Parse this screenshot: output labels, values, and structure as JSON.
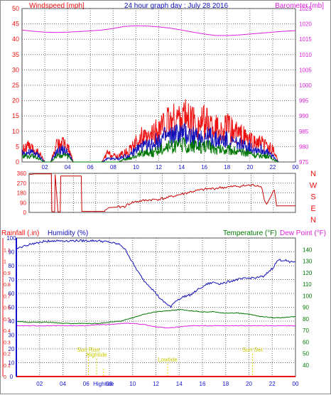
{
  "colors": {
    "red": "#ee1111",
    "blue": "#1111bb",
    "green": "#007700",
    "magenta": "#dd22dd",
    "darkred": "#cc0000",
    "yellow": "#dddd00",
    "grid": "#6a6a6a",
    "axisBlue": "#1111cc"
  },
  "header": {
    "left": "Windspeed [mph]",
    "center": "24 hour graph day : July 28 2016",
    "right": "Barometer [mb]"
  },
  "bottom_header": {
    "rain": "Rainfall (.in)",
    "hum": "Humidity (%)",
    "temp": "Temperature (°F)",
    "dew": "Dew Point (°F)"
  },
  "compass": [
    "N",
    "W",
    "S",
    "E",
    "N"
  ],
  "x_ticks": [
    "02",
    "04",
    "06",
    "08",
    "10",
    "12",
    "14",
    "16",
    "18",
    "20",
    "22",
    "00"
  ],
  "chart_data": [
    {
      "type": "line",
      "name": "wind-and-barometer",
      "title": "24 hour graph day : July 28 2016",
      "x_range": [
        0,
        24
      ],
      "y_left": {
        "label": "Windspeed [mph]",
        "range": [
          0,
          50
        ],
        "ticks": [
          0,
          5,
          10,
          15,
          20,
          25,
          30,
          35,
          40,
          45,
          50
        ]
      },
      "y_right": {
        "label": "Barometer [mb]",
        "range": [
          975,
          1025
        ],
        "ticks": [
          975,
          980,
          985,
          990,
          995,
          1000,
          1005,
          1010,
          1015,
          1020,
          1025
        ]
      },
      "series": [
        {
          "name": "Barometer [mb]",
          "axis": "right",
          "color": "#dd22dd",
          "x": [
            0,
            1,
            2,
            3,
            4,
            5,
            6,
            7,
            8,
            9,
            10,
            11,
            12,
            13,
            14,
            15,
            16,
            17,
            18,
            19,
            20,
            21,
            22,
            23,
            24
          ],
          "y": [
            1018.0,
            1017.6,
            1017.3,
            1017.2,
            1017.3,
            1017.5,
            1017.7,
            1018.0,
            1018.5,
            1019.2,
            1019.4,
            1019.3,
            1019.0,
            1018.6,
            1018.0,
            1017.3,
            1016.7,
            1016.2,
            1016.2,
            1016.4,
            1016.7,
            1017.0,
            1017.3,
            1017.6,
            1017.8
          ]
        },
        {
          "name": "wind gust",
          "axis": "left",
          "color": "#ee1111",
          "x": [
            0,
            0.5,
            1,
            1.5,
            2,
            2.5,
            3,
            3.5,
            4,
            4.5,
            5,
            5.5,
            6,
            6.5,
            7,
            7.5,
            8,
            8.5,
            9,
            9.5,
            10,
            10.5,
            11,
            11.5,
            12,
            12.5,
            13,
            13.5,
            14,
            14.5,
            15,
            15.5,
            16,
            16.5,
            17,
            17.5,
            18,
            18.5,
            19,
            19.5,
            20,
            20.5,
            21,
            21.5,
            22,
            22.5
          ],
          "y": [
            4,
            5,
            4,
            3,
            0,
            0,
            5,
            6,
            5,
            0,
            0,
            0,
            0,
            0,
            0,
            3,
            2,
            2,
            3,
            4,
            6,
            8,
            7,
            9,
            11,
            12,
            13,
            14,
            15,
            14,
            13,
            12,
            13,
            12,
            11,
            10,
            11,
            10,
            9,
            8,
            7,
            6,
            6,
            5,
            4,
            0
          ]
        },
        {
          "name": "wind speed",
          "axis": "left",
          "color": "#1111bb",
          "x": [
            0,
            0.5,
            1,
            1.5,
            2,
            2.5,
            3,
            3.5,
            4,
            4.5,
            5,
            5.5,
            6,
            6.5,
            7,
            7.5,
            8,
            8.5,
            9,
            9.5,
            10,
            10.5,
            11,
            11.5,
            12,
            12.5,
            13,
            13.5,
            14,
            14.5,
            15,
            15.5,
            16,
            16.5,
            17,
            17.5,
            18,
            18.5,
            19,
            19.5,
            20,
            20.5,
            21,
            21.5,
            22,
            22.5
          ],
          "y": [
            3,
            3,
            3,
            2,
            0,
            0,
            3,
            4,
            3,
            0,
            0,
            0,
            0,
            0,
            0,
            1,
            1,
            1,
            2,
            2,
            4,
            5,
            5,
            6,
            7,
            8,
            8,
            9,
            9,
            9,
            8,
            8,
            8,
            8,
            7,
            7,
            7,
            6,
            6,
            5,
            5,
            4,
            4,
            3,
            2,
            0
          ]
        },
        {
          "name": "wind average",
          "axis": "left",
          "color": "#007700",
          "x": [
            0,
            0.5,
            1,
            1.5,
            2,
            2.5,
            3,
            3.5,
            4,
            4.5,
            5,
            5.5,
            6,
            6.5,
            7,
            7.5,
            8,
            8.5,
            9,
            9.5,
            10,
            10.5,
            11,
            11.5,
            12,
            12.5,
            13,
            13.5,
            14,
            14.5,
            15,
            15.5,
            16,
            16.5,
            17,
            17.5,
            18,
            18.5,
            19,
            19.5,
            20,
            20.5,
            21,
            21.5,
            22,
            22.5
          ],
          "y": [
            2,
            2,
            2,
            1,
            0,
            0,
            2,
            2,
            2,
            0,
            0,
            0,
            0,
            0,
            0,
            0,
            0,
            0,
            1,
            1,
            2,
            3,
            3,
            3,
            4,
            5,
            5,
            5,
            6,
            5,
            5,
            5,
            5,
            5,
            4,
            4,
            4,
            4,
            3,
            3,
            3,
            2,
            2,
            2,
            1,
            0
          ]
        }
      ]
    },
    {
      "type": "line",
      "name": "wind-direction",
      "x_range": [
        0,
        24
      ],
      "y_left": {
        "range": [
          0,
          360
        ],
        "ticks": [
          0,
          90,
          180,
          270,
          360
        ]
      },
      "y_right_labels": [
        "N",
        "W",
        "S",
        "E",
        "N"
      ],
      "series": [
        {
          "name": "wind direction",
          "color": "#cc0000",
          "x": [
            0,
            0.5,
            1,
            2.0,
            2.05,
            2.2,
            2.3,
            2.35,
            2.6,
            2.8,
            2.85,
            4.7,
            4.75,
            5.0,
            6.8,
            6.85,
            7.2,
            8.0,
            8.6,
            9.2,
            10.0,
            10.8,
            11.5,
            12.2,
            13.0,
            13.6,
            14.2,
            14.8,
            15.4,
            16.0,
            16.6,
            17.2,
            17.8,
            18.4,
            19.0,
            19.6,
            20.2,
            20.8,
            21.0,
            21.2,
            21.4,
            21.8,
            22.0,
            22.1,
            22.3,
            24
          ],
          "y": [
            350,
            355,
            355,
            355,
            10,
            5,
            5,
            350,
            5,
            5,
            335,
            335,
            10,
            10,
            10,
            20,
            45,
            48,
            55,
            90,
            105,
            115,
            120,
            130,
            150,
            165,
            180,
            195,
            205,
            215,
            220,
            228,
            232,
            238,
            242,
            248,
            250,
            248,
            215,
            110,
            75,
            150,
            200,
            205,
            60,
            60
          ]
        }
      ]
    },
    {
      "type": "line",
      "name": "humidity-temperature-dewpoint",
      "x_range": [
        0,
        24
      ],
      "y_left": {
        "label": "Humidity (%)",
        "range": [
          0,
          100
        ],
        "ticks": [
          0,
          10,
          20,
          30,
          40,
          50,
          60,
          70,
          80,
          90,
          100
        ]
      },
      "y_rain": {
        "label": "Rainfall (.in)",
        "range": [
          0,
          1.2
        ],
        "ticks": [
          0,
          0.1,
          0.2,
          0.3,
          0.4,
          0.5,
          0.6,
          0.7,
          0.8,
          0.9,
          1.0,
          1.1
        ]
      },
      "y_right": {
        "label": "Temperature (°F)",
        "range": [
          30,
          150
        ],
        "ticks": [
          40,
          50,
          60,
          70,
          80,
          90,
          100,
          110,
          120,
          130,
          140
        ]
      },
      "series": [
        {
          "name": "Humidity (%)",
          "axis": "left",
          "color": "#1111bb",
          "x": [
            0,
            0.3,
            1.0,
            2.0,
            3.0,
            4.0,
            5.0,
            6.0,
            7.0,
            8.0,
            8.5,
            9.0,
            9.5,
            10.0,
            10.5,
            11.0,
            11.5,
            12.0,
            12.5,
            13.0,
            13.3,
            13.6,
            14.0,
            14.5,
            15.0,
            15.5,
            16.0,
            16.5,
            17.0,
            17.5,
            18.0,
            19.0,
            20.0,
            21.0,
            21.3,
            21.6,
            22.0,
            22.5,
            23.0,
            23.5,
            24
          ],
          "y": [
            92,
            93,
            95,
            97,
            98,
            98,
            98,
            98,
            98,
            97,
            96,
            95,
            90,
            82,
            75,
            69,
            65,
            60,
            55,
            52,
            50,
            54,
            56,
            58,
            59,
            62,
            65,
            67,
            68,
            67,
            68,
            70,
            71,
            72,
            72,
            75,
            78,
            84,
            84,
            83,
            83
          ]
        },
        {
          "name": "Temperature (°F)",
          "axis": "right",
          "color": "#007700",
          "x": [
            0,
            1,
            2,
            3,
            4,
            5,
            6,
            7,
            8,
            9,
            10,
            11,
            12,
            13,
            14,
            15,
            16,
            17,
            18,
            19,
            20,
            21,
            22,
            23,
            24
          ],
          "y": [
            78,
            77,
            77,
            77,
            76,
            76,
            76,
            76,
            77,
            78,
            81,
            84,
            86,
            87,
            88,
            87,
            86,
            86,
            85,
            85,
            84,
            82,
            81,
            81,
            82
          ]
        },
        {
          "name": "Dew Point (°F)",
          "axis": "right",
          "color": "#dd22dd",
          "x": [
            0,
            1,
            2,
            3,
            4,
            5,
            6,
            7,
            8,
            9,
            10,
            11,
            12,
            13,
            14,
            15,
            16,
            17,
            18,
            19,
            20,
            21,
            22,
            23,
            24
          ],
          "y": [
            74,
            74,
            74,
            74,
            74,
            74,
            74,
            75,
            75,
            76,
            76,
            75,
            73,
            72,
            73,
            74,
            74,
            74,
            74,
            74,
            74,
            74,
            74,
            74,
            74
          ]
        },
        {
          "name": "Rainfall (.in)",
          "axis": "rain",
          "color": "#ee1111",
          "x": [
            0,
            24
          ],
          "y": [
            0,
            0
          ]
        }
      ],
      "annotations": [
        {
          "text": "Sun Rise",
          "x": 6.2,
          "level": 1
        },
        {
          "text": "Hightide",
          "x": 6.9,
          "level": 2
        },
        {
          "text": "Lowtide",
          "x": 13.0,
          "level": 3
        },
        {
          "text": "Sun Set",
          "x": 20.3,
          "level": 1
        },
        {
          "text": "Hightide",
          "x": 7.5,
          "level": 4
        }
      ]
    }
  ]
}
